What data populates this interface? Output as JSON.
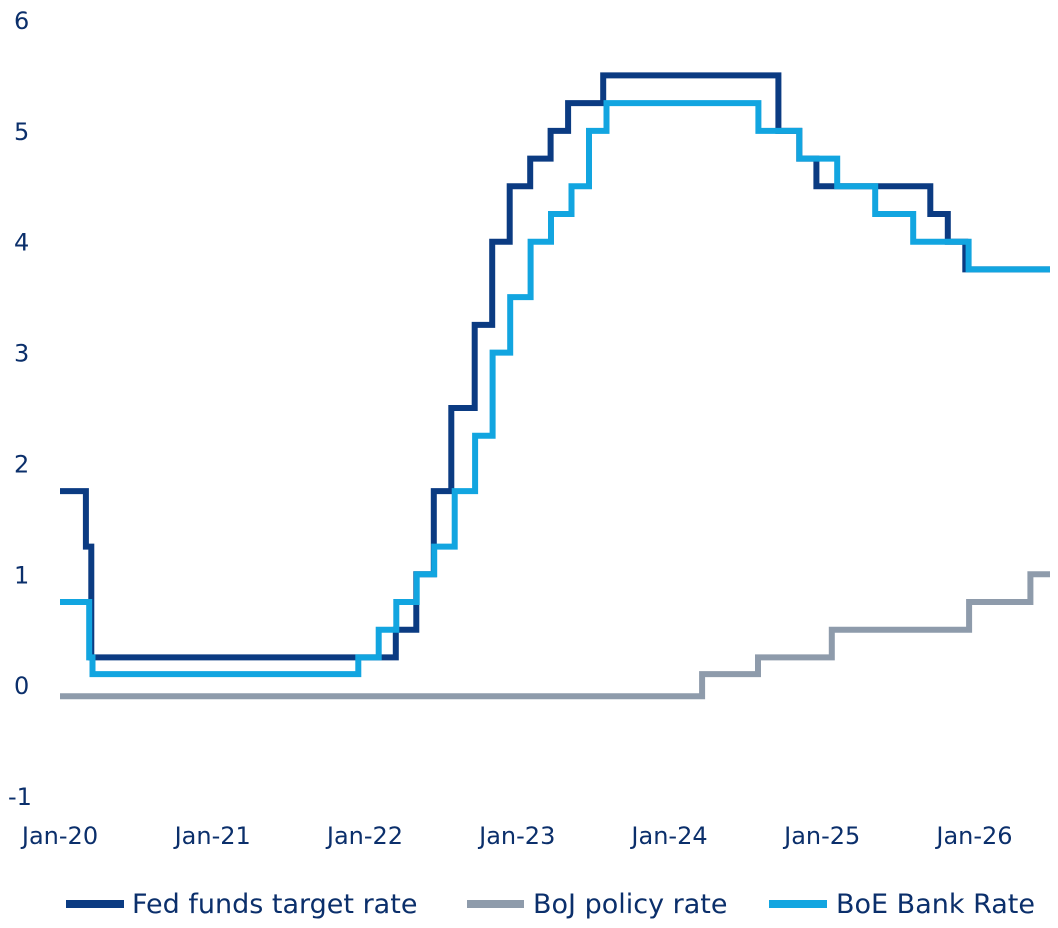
{
  "chart_data": {
    "type": "line",
    "title": "",
    "xlabel": "",
    "ylabel": "",
    "ylim": [
      -1,
      6
    ],
    "yticks": [
      "6",
      "5",
      "4",
      "3",
      "2",
      "1",
      "0",
      "-1"
    ],
    "xticks": [
      {
        "label": "Jan-20",
        "date": "2020-01-01"
      },
      {
        "label": "Jan-21",
        "date": "2021-01-01"
      },
      {
        "label": "Jan-22",
        "date": "2022-01-01"
      },
      {
        "label": "Jan-23",
        "date": "2023-01-01"
      },
      {
        "label": "Jan-24",
        "date": "2024-01-01"
      },
      {
        "label": "Jan-25",
        "date": "2025-01-01"
      },
      {
        "label": "Jan-26",
        "date": "2026-01-01"
      }
    ],
    "grid": false,
    "legend": "bottom",
    "series": [
      {
        "name": "BoJ policy rate",
        "color": "#8e9bab",
        "step": true,
        "points": [
          [
            "2020-01-01",
            -0.1
          ],
          [
            "2024-03-19",
            0.1
          ],
          [
            "2024-07-31",
            0.25
          ],
          [
            "2025-01-24",
            0.5
          ],
          [
            "2025-12-19",
            0.75
          ],
          [
            "2026-05-15",
            1.0
          ],
          [
            "2026-07-01",
            1.0
          ]
        ]
      },
      {
        "name": "Fed funds target rate",
        "color": "#0b3b82",
        "step": true,
        "points": [
          [
            "2020-01-01",
            1.75
          ],
          [
            "2020-03-03",
            1.25
          ],
          [
            "2020-03-16",
            0.25
          ],
          [
            "2022-03-16",
            0.5
          ],
          [
            "2022-05-04",
            1.0
          ],
          [
            "2022-06-15",
            1.75
          ],
          [
            "2022-07-27",
            2.5
          ],
          [
            "2022-09-21",
            3.25
          ],
          [
            "2022-11-02",
            4.0
          ],
          [
            "2022-12-14",
            4.5
          ],
          [
            "2023-02-01",
            4.75
          ],
          [
            "2023-03-22",
            5.0
          ],
          [
            "2023-05-03",
            5.25
          ],
          [
            "2023-07-26",
            5.5
          ],
          [
            "2024-09-18",
            5.0
          ],
          [
            "2024-11-07",
            4.75
          ],
          [
            "2024-12-18",
            4.5
          ],
          [
            "2025-09-17",
            4.25
          ],
          [
            "2025-10-29",
            4.0
          ],
          [
            "2025-12-10",
            3.75
          ],
          [
            "2026-07-01",
            3.75
          ]
        ]
      },
      {
        "name": "BoE Bank Rate",
        "color": "#12a5e0",
        "step": true,
        "points": [
          [
            "2020-01-01",
            0.75
          ],
          [
            "2020-03-11",
            0.25
          ],
          [
            "2020-03-19",
            0.1
          ],
          [
            "2021-12-16",
            0.25
          ],
          [
            "2022-02-03",
            0.5
          ],
          [
            "2022-03-17",
            0.75
          ],
          [
            "2022-05-05",
            1.0
          ],
          [
            "2022-06-16",
            1.25
          ],
          [
            "2022-08-04",
            1.75
          ],
          [
            "2022-09-22",
            2.25
          ],
          [
            "2022-11-03",
            3.0
          ],
          [
            "2022-12-15",
            3.5
          ],
          [
            "2023-02-02",
            4.0
          ],
          [
            "2023-03-23",
            4.25
          ],
          [
            "2023-05-11",
            4.5
          ],
          [
            "2023-06-22",
            5.0
          ],
          [
            "2023-08-03",
            5.25
          ],
          [
            "2024-08-01",
            5.0
          ],
          [
            "2024-11-07",
            4.75
          ],
          [
            "2025-02-06",
            4.5
          ],
          [
            "2025-05-08",
            4.25
          ],
          [
            "2025-08-07",
            4.0
          ],
          [
            "2025-12-18",
            3.75
          ],
          [
            "2026-07-01",
            3.75
          ]
        ]
      }
    ]
  },
  "legend": {
    "items": [
      {
        "label": "Fed funds target rate",
        "color": "#0b3b82"
      },
      {
        "label": "BoJ policy rate",
        "color": "#8e9bab"
      },
      {
        "label": "BoE Bank Rate",
        "color": "#12a5e0"
      }
    ]
  }
}
